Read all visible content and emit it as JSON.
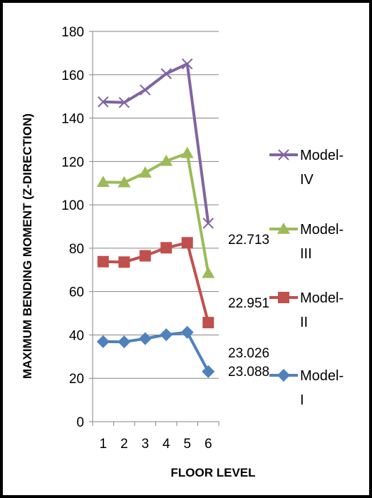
{
  "chart_data": {
    "type": "line",
    "xlabel": "FLOOR LEVEL",
    "ylabel": "MAXIMUM  BENDING  MOMENT  (Z-DIRECTION)",
    "categories": [
      "1",
      "2",
      "3",
      "4",
      "5",
      "6"
    ],
    "ylim": [
      0,
      180
    ],
    "yticks": [
      "0",
      "20",
      "40",
      "60",
      "80",
      "100",
      "120",
      "140",
      "160",
      "180"
    ],
    "grid": true,
    "legend_position": "right",
    "series": [
      {
        "name": "Model-IV",
        "values": [
          147.5,
          147.2,
          153,
          160.5,
          165,
          91.5
        ],
        "color": "#8064A2",
        "marker": "x",
        "label": "22.713"
      },
      {
        "name": "Model-III",
        "values": [
          110.5,
          110.3,
          114.8,
          120.2,
          123.8,
          68.5
        ],
        "color": "#9BBB59",
        "marker": "triangle",
        "label": "22.951"
      },
      {
        "name": "Model-II",
        "values": [
          73.8,
          73.6,
          76.5,
          80.2,
          82.5,
          45.7
        ],
        "color": "#C0504D",
        "marker": "square",
        "label": "23.026"
      },
      {
        "name": "Model-I",
        "values": [
          36.9,
          36.8,
          38.3,
          40.1,
          41.2,
          23.1
        ],
        "color": "#4F81BD",
        "marker": "diamond",
        "label": "23.088"
      }
    ]
  },
  "legend": [
    {
      "line1": "Model-",
      "line2": "IV"
    },
    {
      "line1": "Model-",
      "line2": "III"
    },
    {
      "line1": "Model-",
      "line2": "II"
    },
    {
      "line1": "Model-",
      "line2": "I"
    }
  ]
}
